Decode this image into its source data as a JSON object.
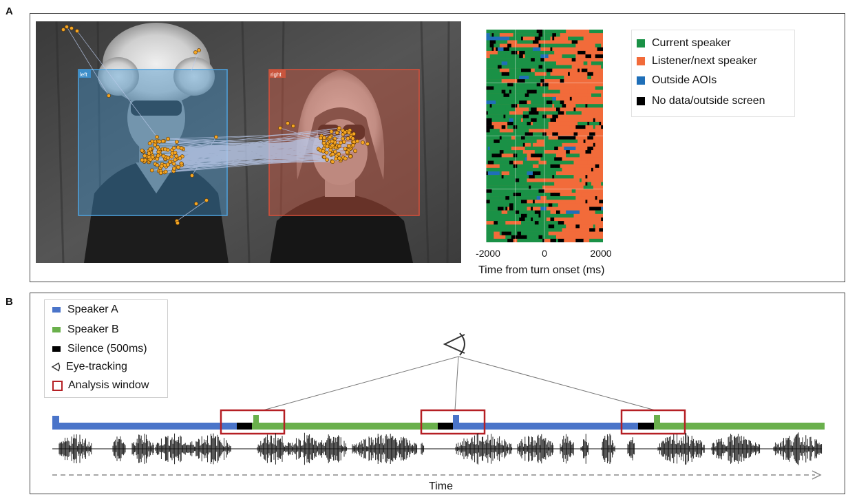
{
  "panel_a": {
    "letter": "A",
    "aoi_left_label": "left",
    "aoi_right_label": "right",
    "raster": {
      "x_ticks": [
        "-2000",
        "0",
        "2000"
      ],
      "xlabel": "Time from turn onset (ms)"
    },
    "legend": [
      {
        "label": "Current speaker",
        "color": "#1a9146"
      },
      {
        "label": "Listener/next speaker",
        "color": "#f26b3a"
      },
      {
        "label": "Outside AOIs",
        "color": "#1f6fb8"
      },
      {
        "label": "No data/outside screen",
        "color": "#000000"
      }
    ]
  },
  "panel_b": {
    "letter": "B",
    "legend": [
      {
        "label": "Speaker A",
        "color": "#4a74c9",
        "icon": "blue-bar"
      },
      {
        "label": "Speaker B",
        "color": "#6ab04c",
        "icon": "green-bar"
      },
      {
        "label": "Silence (500ms)",
        "color": "#000000",
        "icon": "black-bar"
      },
      {
        "label": "Eye-tracking",
        "color": "#333333",
        "icon": "eye-icon"
      },
      {
        "label": "Analysis window",
        "color": "#b51f24",
        "icon": "red-box-icon"
      }
    ],
    "time_label": "Time"
  },
  "chart_data": {
    "type": "heatmap",
    "x_ticks": [
      -2000,
      0,
      2000
    ],
    "xlim": [
      -2000,
      2000
    ],
    "xlabel": "Time from turn onset (ms)",
    "categories": [
      "Current speaker",
      "Listener/next speaker",
      "Outside AOIs",
      "No data/outside screen"
    ],
    "colors": [
      "#1a9146",
      "#f26b3a",
      "#1f6fb8",
      "#000000"
    ],
    "pattern": "Before 0 ms mostly 'Current speaker'; after 0 ms mostly 'Listener/next speaker'"
  }
}
